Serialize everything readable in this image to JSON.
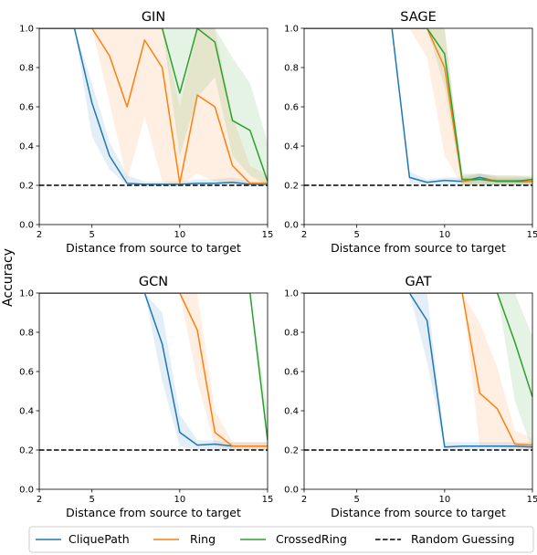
{
  "figure": {
    "ylabel": "Accuracy",
    "xlabel": "Distance from source to target"
  },
  "chart_data": [
    {
      "type": "line",
      "title": "GIN",
      "xlabel": "Distance from source to target",
      "ylabel": "Accuracy",
      "xlim": [
        2,
        15
      ],
      "ylim": [
        0,
        1
      ],
      "xticks": [
        2,
        5,
        10,
        15
      ],
      "yticks": [
        0.0,
        0.2,
        0.4,
        0.6,
        0.8,
        1.0
      ],
      "random_guessing": 0.2,
      "series": [
        {
          "name": "CliquePath",
          "x": [
            2,
            3,
            4,
            5,
            6,
            7,
            8,
            9,
            10,
            11,
            12,
            13,
            14,
            15
          ],
          "y": [
            1.0,
            1.0,
            1.0,
            0.62,
            0.35,
            0.21,
            0.205,
            0.205,
            0.205,
            0.21,
            0.21,
            0.215,
            0.205,
            0.205
          ],
          "band_low": [
            1.0,
            1.0,
            1.0,
            0.45,
            0.28,
            0.2,
            0.2,
            0.2,
            0.2,
            0.2,
            0.2,
            0.2,
            0.2,
            0.2
          ],
          "band_high": [
            1.0,
            1.0,
            1.0,
            0.72,
            0.42,
            0.25,
            0.22,
            0.22,
            0.22,
            0.23,
            0.23,
            0.24,
            0.22,
            0.22
          ]
        },
        {
          "name": "Ring",
          "x": [
            2,
            3,
            4,
            5,
            6,
            7,
            8,
            9,
            10,
            11,
            12,
            13,
            14,
            15
          ],
          "y": [
            1.0,
            1.0,
            1.0,
            1.0,
            0.86,
            0.6,
            0.94,
            0.8,
            0.21,
            0.66,
            0.6,
            0.3,
            0.21,
            0.21
          ],
          "band_low": [
            1.0,
            1.0,
            1.0,
            1.0,
            0.62,
            0.22,
            0.55,
            0.22,
            0.2,
            0.26,
            0.22,
            0.2,
            0.2,
            0.2
          ],
          "band_high": [
            1.0,
            1.0,
            1.0,
            1.0,
            1.0,
            1.0,
            1.0,
            1.0,
            0.6,
            1.0,
            1.0,
            0.55,
            0.3,
            0.25
          ]
        },
        {
          "name": "CrossedRing",
          "x": [
            2,
            3,
            4,
            5,
            6,
            7,
            8,
            9,
            10,
            11,
            12,
            13,
            14,
            15
          ],
          "y": [
            1.0,
            1.0,
            1.0,
            1.0,
            1.0,
            1.0,
            1.0,
            1.0,
            0.67,
            1.0,
            0.93,
            0.53,
            0.48,
            0.22
          ],
          "band_low": [
            1.0,
            1.0,
            1.0,
            1.0,
            1.0,
            1.0,
            1.0,
            1.0,
            0.35,
            0.65,
            0.75,
            0.35,
            0.25,
            0.2
          ],
          "band_high": [
            1.0,
            1.0,
            1.0,
            1.0,
            1.0,
            1.0,
            1.0,
            1.0,
            1.0,
            1.0,
            1.0,
            0.85,
            0.72,
            0.42
          ]
        }
      ]
    },
    {
      "type": "line",
      "title": "SAGE",
      "xlabel": "Distance from source to target",
      "ylabel": "",
      "xlim": [
        2,
        15
      ],
      "ylim": [
        0,
        1
      ],
      "xticks": [
        2,
        5,
        10,
        15
      ],
      "yticks": [
        0.0,
        0.2,
        0.4,
        0.6,
        0.8,
        1.0
      ],
      "random_guessing": 0.2,
      "series": [
        {
          "name": "CliquePath",
          "x": [
            2,
            3,
            4,
            5,
            6,
            7,
            8,
            9,
            10,
            11,
            12,
            13,
            14,
            15
          ],
          "y": [
            1.0,
            1.0,
            1.0,
            1.0,
            1.0,
            1.0,
            0.24,
            0.215,
            0.225,
            0.22,
            0.24,
            0.22,
            0.22,
            0.22
          ],
          "band_low": [
            1.0,
            1.0,
            1.0,
            1.0,
            1.0,
            1.0,
            0.21,
            0.2,
            0.2,
            0.2,
            0.21,
            0.2,
            0.2,
            0.2
          ],
          "band_high": [
            1.0,
            1.0,
            1.0,
            1.0,
            1.0,
            1.0,
            0.27,
            0.23,
            0.24,
            0.24,
            0.26,
            0.24,
            0.24,
            0.24
          ]
        },
        {
          "name": "Ring",
          "x": [
            2,
            3,
            4,
            5,
            6,
            7,
            8,
            9,
            10,
            11,
            12,
            13,
            14,
            15
          ],
          "y": [
            1.0,
            1.0,
            1.0,
            1.0,
            1.0,
            1.0,
            1.0,
            1.0,
            0.8,
            0.22,
            0.23,
            0.225,
            0.225,
            0.22
          ],
          "band_low": [
            1.0,
            1.0,
            1.0,
            1.0,
            1.0,
            1.0,
            1.0,
            0.85,
            0.35,
            0.2,
            0.2,
            0.2,
            0.2,
            0.2
          ],
          "band_high": [
            1.0,
            1.0,
            1.0,
            1.0,
            1.0,
            1.0,
            1.0,
            1.0,
            1.0,
            0.25,
            0.26,
            0.25,
            0.25,
            0.24
          ]
        },
        {
          "name": "CrossedRing",
          "x": [
            2,
            3,
            4,
            5,
            6,
            7,
            8,
            9,
            10,
            11,
            12,
            13,
            14,
            15
          ],
          "y": [
            1.0,
            1.0,
            1.0,
            1.0,
            1.0,
            1.0,
            1.0,
            1.0,
            0.87,
            0.23,
            0.23,
            0.22,
            0.22,
            0.23
          ],
          "band_low": [
            1.0,
            1.0,
            1.0,
            1.0,
            1.0,
            1.0,
            1.0,
            1.0,
            0.7,
            0.2,
            0.2,
            0.2,
            0.2,
            0.2
          ],
          "band_high": [
            1.0,
            1.0,
            1.0,
            1.0,
            1.0,
            1.0,
            1.0,
            1.0,
            1.0,
            0.26,
            0.26,
            0.25,
            0.25,
            0.25
          ]
        }
      ]
    },
    {
      "type": "line",
      "title": "GCN",
      "xlabel": "Distance from source to target",
      "ylabel": "",
      "xlim": [
        2,
        15
      ],
      "ylim": [
        0,
        1
      ],
      "xticks": [
        2,
        5,
        10,
        15
      ],
      "yticks": [
        0.0,
        0.2,
        0.4,
        0.6,
        0.8,
        1.0
      ],
      "random_guessing": 0.2,
      "series": [
        {
          "name": "CliquePath",
          "x": [
            2,
            3,
            4,
            5,
            6,
            7,
            8,
            9,
            10,
            11,
            12,
            13,
            14,
            15
          ],
          "y": [
            1.0,
            1.0,
            1.0,
            1.0,
            1.0,
            1.0,
            1.0,
            0.74,
            0.29,
            0.225,
            0.23,
            0.22,
            0.22,
            0.22
          ],
          "band_low": [
            1.0,
            1.0,
            1.0,
            1.0,
            1.0,
            1.0,
            1.0,
            0.55,
            0.22,
            0.2,
            0.2,
            0.2,
            0.2,
            0.2
          ],
          "band_high": [
            1.0,
            1.0,
            1.0,
            1.0,
            1.0,
            1.0,
            1.0,
            0.9,
            0.38,
            0.25,
            0.25,
            0.24,
            0.24,
            0.24
          ]
        },
        {
          "name": "Ring",
          "x": [
            2,
            3,
            4,
            5,
            6,
            7,
            8,
            9,
            10,
            11,
            12,
            13,
            14,
            15
          ],
          "y": [
            1.0,
            1.0,
            1.0,
            1.0,
            1.0,
            1.0,
            1.0,
            1.0,
            1.0,
            0.81,
            0.29,
            0.22,
            0.22,
            0.22
          ],
          "band_low": [
            1.0,
            1.0,
            1.0,
            1.0,
            1.0,
            1.0,
            1.0,
            1.0,
            1.0,
            0.55,
            0.22,
            0.2,
            0.2,
            0.2
          ],
          "band_high": [
            1.0,
            1.0,
            1.0,
            1.0,
            1.0,
            1.0,
            1.0,
            1.0,
            1.0,
            1.0,
            0.4,
            0.24,
            0.24,
            0.24
          ]
        },
        {
          "name": "CrossedRing",
          "x": [
            2,
            3,
            4,
            5,
            6,
            7,
            8,
            9,
            10,
            11,
            12,
            13,
            14,
            15
          ],
          "y": [
            1.0,
            1.0,
            1.0,
            1.0,
            1.0,
            1.0,
            1.0,
            1.0,
            1.0,
            1.0,
            1.0,
            1.0,
            1.0,
            0.25
          ],
          "band_low": [
            1.0,
            1.0,
            1.0,
            1.0,
            1.0,
            1.0,
            1.0,
            1.0,
            1.0,
            1.0,
            1.0,
            1.0,
            1.0,
            0.2
          ],
          "band_high": [
            1.0,
            1.0,
            1.0,
            1.0,
            1.0,
            1.0,
            1.0,
            1.0,
            1.0,
            1.0,
            1.0,
            1.0,
            1.0,
            0.4
          ]
        }
      ]
    },
    {
      "type": "line",
      "title": "GAT",
      "xlabel": "Distance from source to target",
      "ylabel": "",
      "xlim": [
        2,
        15
      ],
      "ylim": [
        0,
        1
      ],
      "xticks": [
        2,
        5,
        10,
        15
      ],
      "yticks": [
        0.0,
        0.2,
        0.4,
        0.6,
        0.8,
        1.0
      ],
      "random_guessing": 0.2,
      "series": [
        {
          "name": "CliquePath",
          "x": [
            2,
            3,
            4,
            5,
            6,
            7,
            8,
            9,
            10,
            11,
            12,
            13,
            14,
            15
          ],
          "y": [
            1.0,
            1.0,
            1.0,
            1.0,
            1.0,
            1.0,
            1.0,
            0.86,
            0.215,
            0.22,
            0.22,
            0.22,
            0.22,
            0.215
          ],
          "band_low": [
            1.0,
            1.0,
            1.0,
            1.0,
            1.0,
            1.0,
            1.0,
            0.65,
            0.2,
            0.2,
            0.2,
            0.2,
            0.2,
            0.2
          ],
          "band_high": [
            1.0,
            1.0,
            1.0,
            1.0,
            1.0,
            1.0,
            1.0,
            1.0,
            0.24,
            0.24,
            0.24,
            0.24,
            0.24,
            0.24
          ]
        },
        {
          "name": "Ring",
          "x": [
            2,
            3,
            4,
            5,
            6,
            7,
            8,
            9,
            10,
            11,
            12,
            13,
            14,
            15
          ],
          "y": [
            1.0,
            1.0,
            1.0,
            1.0,
            1.0,
            1.0,
            1.0,
            1.0,
            1.0,
            1.0,
            0.49,
            0.41,
            0.23,
            0.225
          ],
          "band_low": [
            1.0,
            1.0,
            1.0,
            1.0,
            1.0,
            1.0,
            1.0,
            1.0,
            1.0,
            1.0,
            0.22,
            0.22,
            0.2,
            0.2
          ],
          "band_high": [
            1.0,
            1.0,
            1.0,
            1.0,
            1.0,
            1.0,
            1.0,
            1.0,
            1.0,
            1.0,
            0.85,
            0.62,
            0.3,
            0.26
          ]
        },
        {
          "name": "CrossedRing",
          "x": [
            2,
            3,
            4,
            5,
            6,
            7,
            8,
            9,
            10,
            11,
            12,
            13,
            14,
            15
          ],
          "y": [
            1.0,
            1.0,
            1.0,
            1.0,
            1.0,
            1.0,
            1.0,
            1.0,
            1.0,
            1.0,
            1.0,
            1.0,
            0.75,
            0.47
          ],
          "band_low": [
            1.0,
            1.0,
            1.0,
            1.0,
            1.0,
            1.0,
            1.0,
            1.0,
            1.0,
            1.0,
            1.0,
            1.0,
            0.45,
            0.2
          ],
          "band_high": [
            1.0,
            1.0,
            1.0,
            1.0,
            1.0,
            1.0,
            1.0,
            1.0,
            1.0,
            1.0,
            1.0,
            1.0,
            1.0,
            0.78
          ]
        }
      ]
    }
  ],
  "legend": {
    "placement": "bottom",
    "entries": [
      {
        "label": "CliquePath",
        "color": "#1f77b4",
        "dash": false
      },
      {
        "label": "Ring",
        "color": "#ff7f0e",
        "dash": false
      },
      {
        "label": "CrossedRing",
        "color": "#2ca02c",
        "dash": false
      },
      {
        "label": "Random Guessing",
        "color": "#000000",
        "dash": true
      }
    ]
  },
  "colors": {
    "CliquePath": "#1f77b4",
    "Ring": "#ff7f0e",
    "CrossedRing": "#2ca02c",
    "Random Guessing": "#000000"
  }
}
